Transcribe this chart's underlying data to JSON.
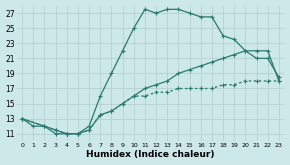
{
  "xlabel": "Humidex (Indice chaleur)",
  "xlim": [
    -0.5,
    23.5
  ],
  "ylim": [
    10,
    28
  ],
  "yticks": [
    11,
    13,
    15,
    17,
    19,
    21,
    23,
    25,
    27
  ],
  "xticks": [
    0,
    1,
    2,
    3,
    4,
    5,
    6,
    7,
    8,
    9,
    10,
    11,
    12,
    13,
    14,
    15,
    16,
    17,
    18,
    19,
    20,
    21,
    22,
    23
  ],
  "bg_color": "#cce8e8",
  "grid_color": "#b0cccc",
  "line_color": "#2a7a70",
  "line1_x": [
    0,
    1,
    2,
    3,
    4,
    5,
    6,
    7,
    8,
    9,
    10,
    11,
    12,
    13,
    14,
    15,
    16,
    17,
    18,
    19,
    20,
    21,
    22,
    23
  ],
  "line1_y": [
    13,
    12,
    12,
    11,
    11,
    11,
    12,
    16,
    19,
    22,
    25,
    27.5,
    27,
    27.5,
    27.5,
    27,
    26.5,
    26.5,
    24,
    23.5,
    22,
    21,
    21,
    18.5
  ],
  "line2_x": [
    0,
    2,
    3,
    4,
    5,
    6,
    7,
    8,
    9,
    10,
    11,
    12,
    13,
    14,
    15,
    16,
    17,
    18,
    19,
    20,
    21,
    22,
    23
  ],
  "line2_y": [
    13,
    12,
    11.5,
    11,
    11,
    11.5,
    13.5,
    14,
    15,
    16,
    17,
    17.5,
    18,
    19,
    19.5,
    20,
    20.5,
    21,
    21.5,
    22,
    22,
    22,
    18
  ],
  "line3_x": [
    0,
    2,
    3,
    4,
    5,
    6,
    7,
    8,
    9,
    10,
    11,
    12,
    13,
    14,
    15,
    16,
    17,
    18,
    19,
    20,
    21,
    22,
    23
  ],
  "line3_y": [
    13,
    12,
    11.5,
    11,
    11,
    11.5,
    13.5,
    14,
    15,
    16,
    16,
    16.5,
    16.5,
    17,
    17,
    17,
    17,
    17.5,
    17.5,
    18,
    18,
    18,
    18
  ]
}
